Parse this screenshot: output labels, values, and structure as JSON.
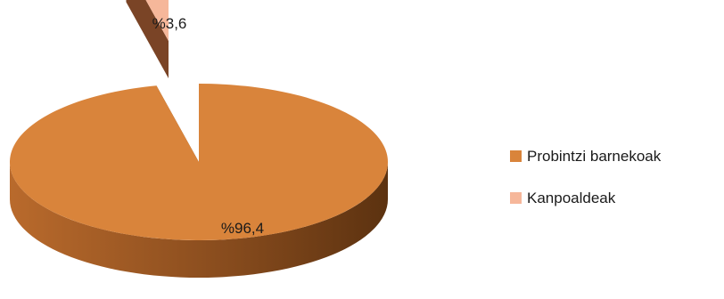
{
  "chart_data": {
    "type": "pie",
    "style": "3d-exploded",
    "categories": [
      "Probintzi barnekoak",
      "Kanpoaldeak"
    ],
    "values": [
      96.4,
      3.6
    ],
    "data_labels": [
      "%96,4",
      "%3,6"
    ],
    "colors": {
      "Probintzi barnekoak": "#d9843b",
      "Kanpoaldeak": "#f6b79a"
    },
    "side_colors": {
      "Probintzi barnekoak": "#8a4d1e",
      "Kanpoaldeak": "#c07f66"
    },
    "legend": {
      "position": "right",
      "entries": [
        "Probintzi barnekoak",
        "Kanpoaldeak"
      ]
    }
  }
}
